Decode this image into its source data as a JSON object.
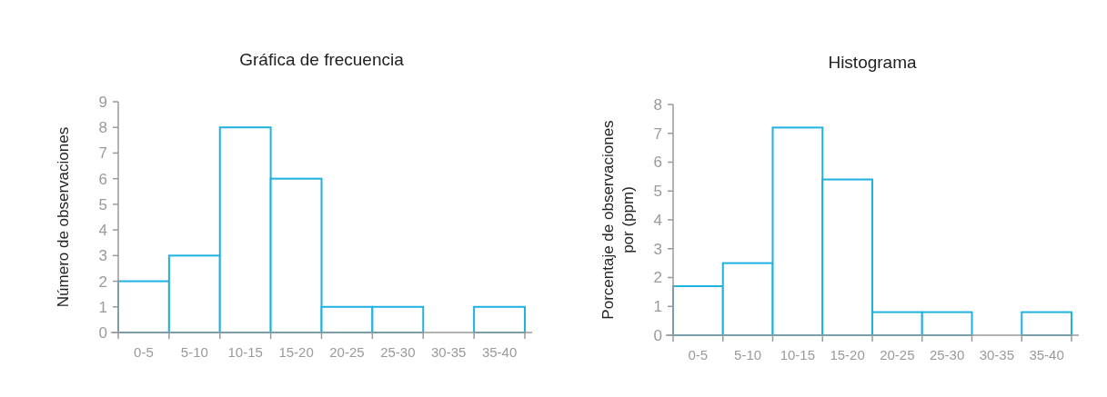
{
  "chart_data": [
    {
      "type": "bar",
      "title": "Gráfica de frecuencia",
      "ylabel": "Número de observaciones",
      "categories": [
        "0-5",
        "5-10",
        "10-15",
        "15-20",
        "20-25",
        "25-30",
        "30-35",
        "35-40"
      ],
      "series": [
        {
          "color": "#1fb1e0",
          "values": [
            2,
            3,
            8,
            6,
            1,
            1,
            0,
            1
          ]
        }
      ],
      "ylim": [
        0,
        9
      ],
      "yticks": [
        0,
        1,
        2,
        3,
        4,
        5,
        6,
        7,
        8,
        9
      ],
      "grid": false
    },
    {
      "type": "bar",
      "title": "Histograma",
      "ylabel": "Porcentaje de observaciones\npor (ppm)",
      "categories": [
        "0-5",
        "5-10",
        "10-15",
        "15-20",
        "20-25",
        "25-30",
        "30-35",
        "35-40"
      ],
      "series": [
        {
          "color": "#1fb1e0",
          "values": [
            1.7,
            2.5,
            7.2,
            5.4,
            0.8,
            0.8,
            0,
            0.8
          ]
        }
      ],
      "ylim": [
        0,
        8
      ],
      "yticks": [
        0,
        1,
        2,
        3,
        4,
        5,
        6,
        7,
        8
      ],
      "grid": false
    }
  ]
}
